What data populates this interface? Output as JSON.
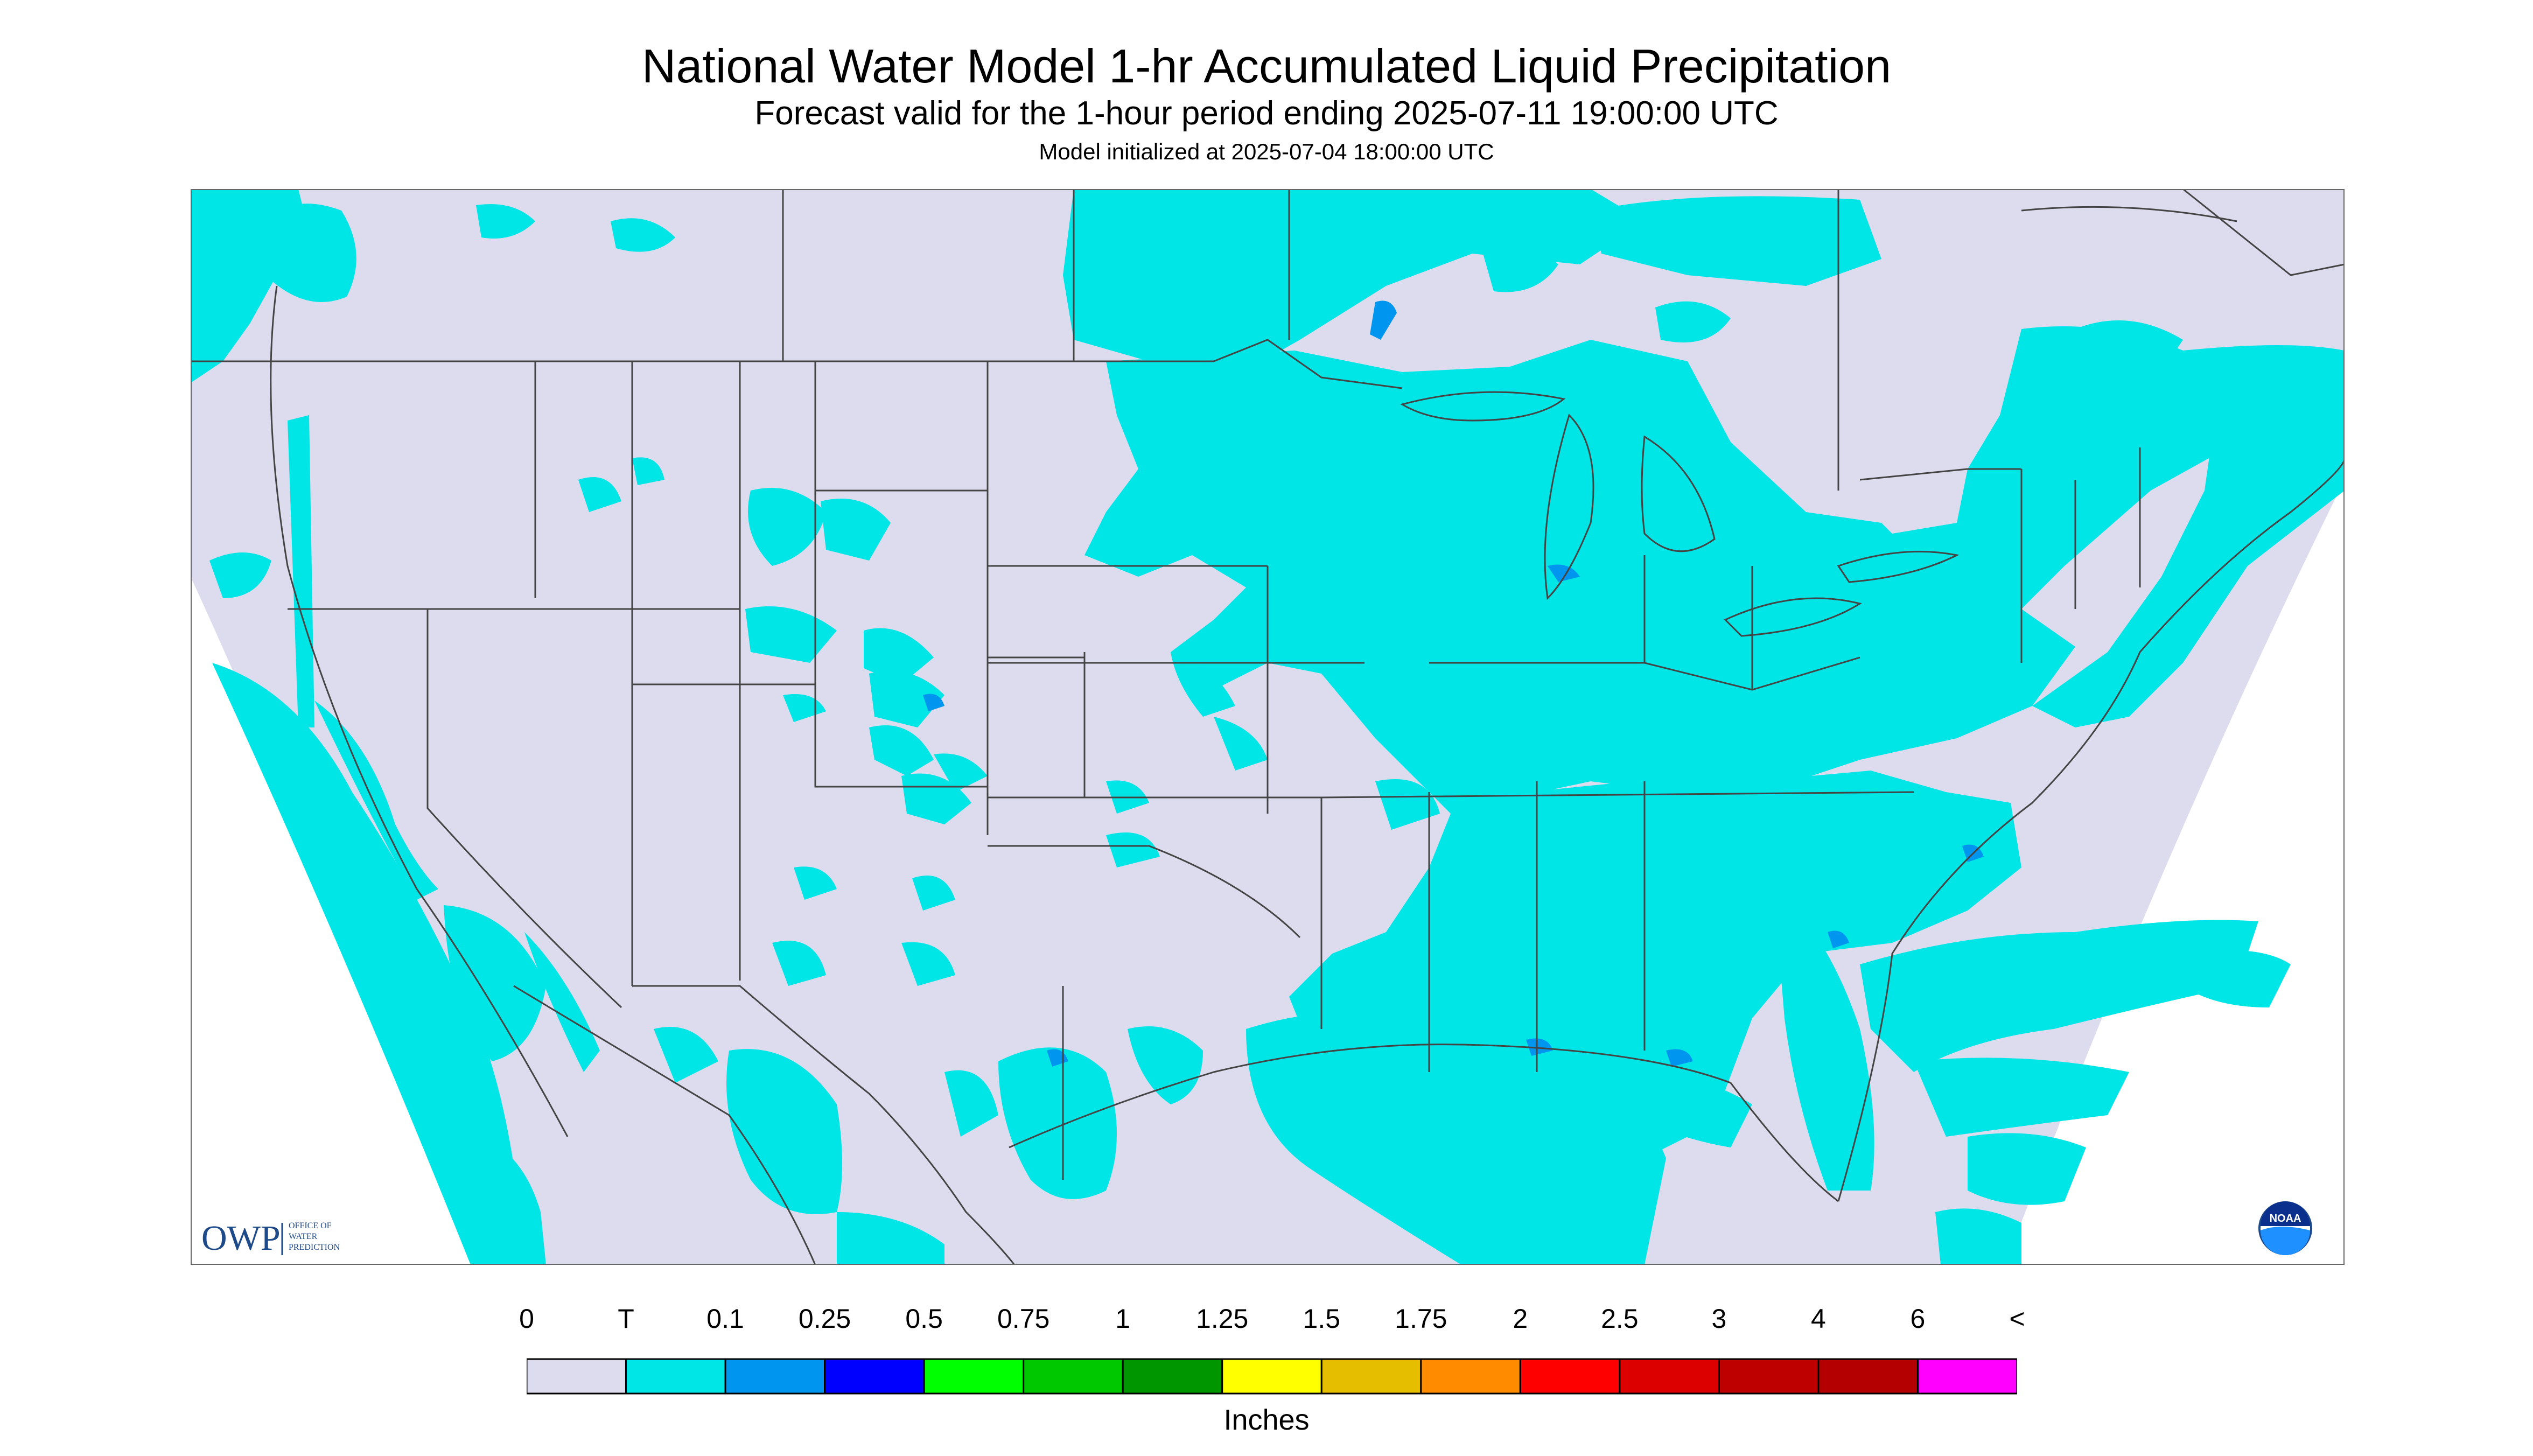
{
  "header": {
    "title": "National Water Model 1-hr Accumulated Liquid Precipitation",
    "subtitle": "Forecast valid for the 1-hour period ending 2025-07-11 19:00:00 UTC",
    "model_init": "Model initialized at 2025-07-04 18:00:00 UTC"
  },
  "map": {
    "region": "Continental United States",
    "background_color": "#dcdcee",
    "trace_color": "#00e5e5",
    "light_color": "#0096f0",
    "land_outline": "#000000"
  },
  "logos": {
    "owp_mark": "OWP",
    "owp_text": [
      "OFFICE OF",
      "WATER",
      "PREDICTION"
    ],
    "noaa_mark": "NOAA"
  },
  "legend": {
    "tick_labels": [
      "0",
      "T",
      "0.1",
      "0.25",
      "0.5",
      "0.75",
      "1",
      "1.25",
      "1.5",
      "1.75",
      "2",
      "2.5",
      "3",
      "4",
      "6",
      "<"
    ],
    "colors": [
      "#dcdcee",
      "#00e5e5",
      "#0096f0",
      "#0000ff",
      "#00ff00",
      "#00c800",
      "#009600",
      "#ffff00",
      "#e6be00",
      "#ff8c00",
      "#ff0000",
      "#dc0000",
      "#be0000",
      "#b40000",
      "#ff00ff",
      "#9650c8"
    ],
    "units": "Inches"
  }
}
